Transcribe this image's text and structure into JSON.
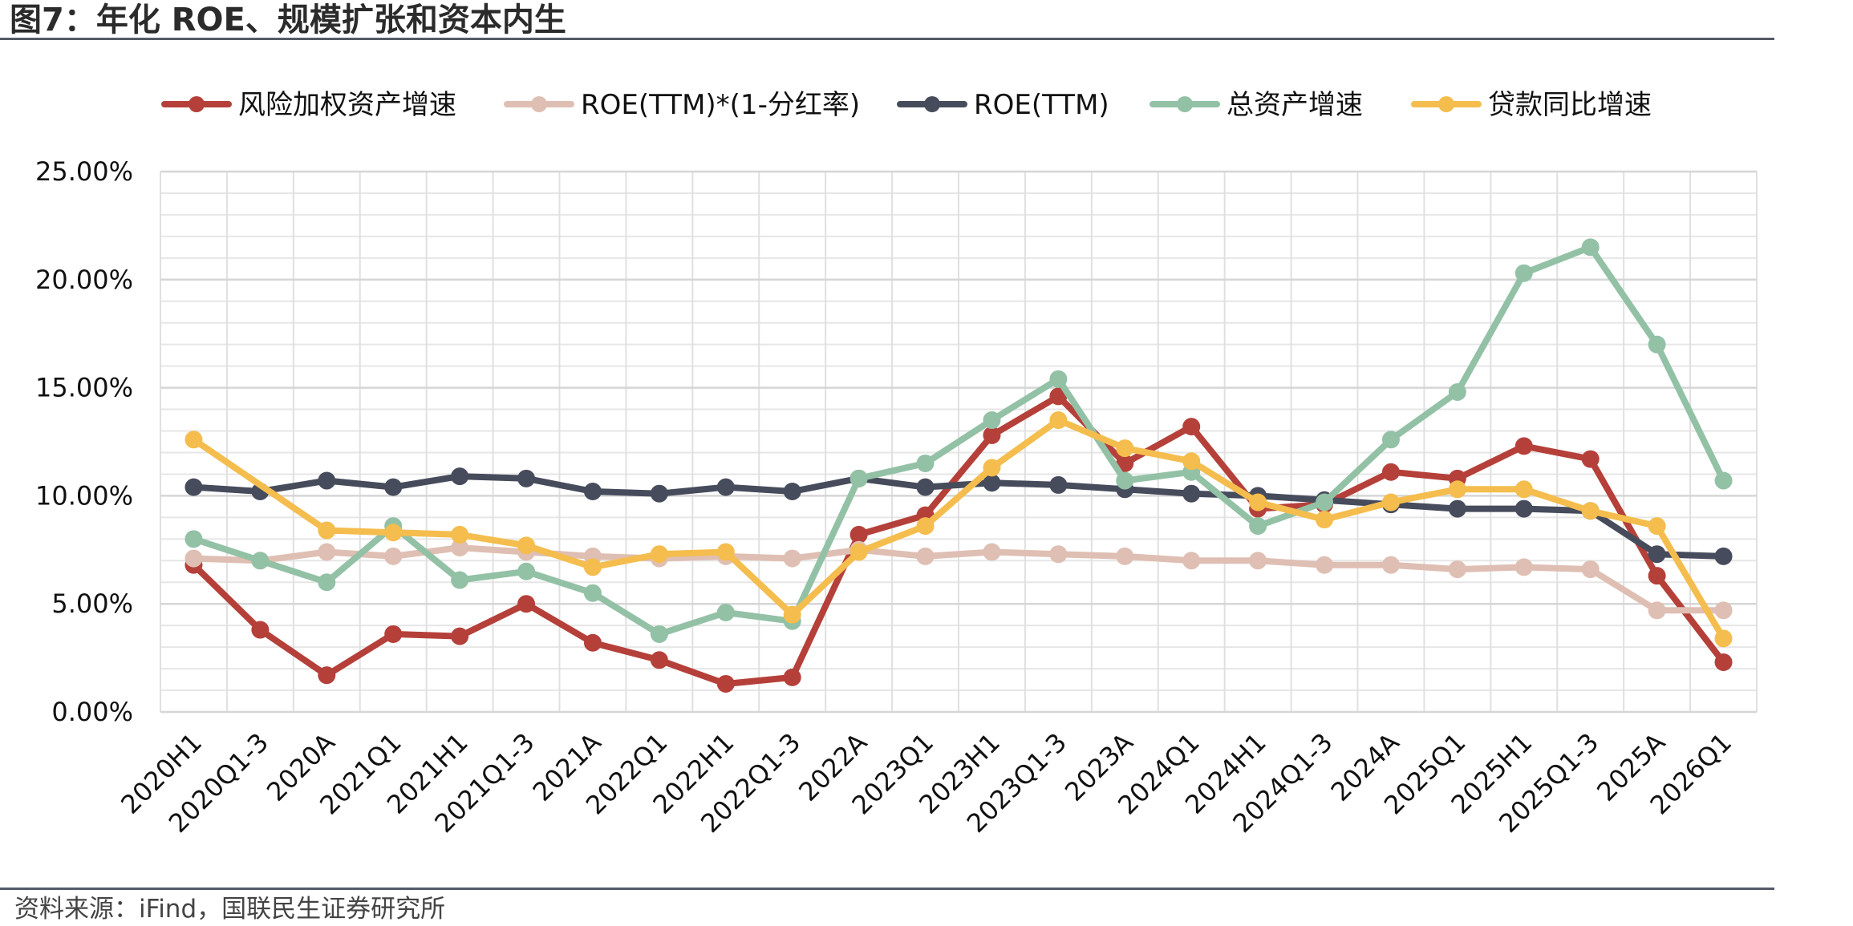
{
  "figure": {
    "title": "图7：年化 ROE、规模扩张和资本内生",
    "source": "资料来源：iFind，国联民生证券研究所"
  },
  "chart_data": {
    "type": "line",
    "categories": [
      "2020H1",
      "2020Q1-3",
      "2020A",
      "2021Q1",
      "2021H1",
      "2021Q1-3",
      "2021A",
      "2022Q1",
      "2022H1",
      "2022Q1-3",
      "2022A",
      "2023Q1",
      "2023H1",
      "2023Q1-3",
      "2023A",
      "2024Q1",
      "2024H1",
      "2024Q1-3",
      "2024A",
      "2025Q1",
      "2025H1",
      "2025Q1-3",
      "2025A",
      "2026Q1"
    ],
    "ylim": [
      0,
      25
    ],
    "yticks": [
      0,
      5,
      10,
      15,
      20,
      25
    ],
    "ytick_labels": [
      "0.00%",
      "5.00%",
      "10.00%",
      "15.00%",
      "20.00%",
      "25.00%"
    ],
    "grid": true,
    "legend_position": "top",
    "series": [
      {
        "name": "风险加权资产增速",
        "color": "#b5403a",
        "values": [
          6.8,
          3.8,
          1.7,
          3.6,
          3.5,
          5.0,
          3.2,
          2.4,
          1.3,
          1.6,
          8.2,
          9.1,
          12.8,
          14.6,
          11.5,
          13.2,
          9.4,
          9.6,
          11.1,
          10.8,
          12.3,
          11.7,
          6.3,
          2.3
        ]
      },
      {
        "name": "ROE(TTM)*(1-分红率)",
        "color": "#dfbfb3",
        "values": [
          7.1,
          7.0,
          7.4,
          7.2,
          7.6,
          7.4,
          7.2,
          7.1,
          7.2,
          7.1,
          7.5,
          7.2,
          7.4,
          7.3,
          7.2,
          7.0,
          7.0,
          6.8,
          6.8,
          6.6,
          6.7,
          6.6,
          4.7,
          4.7
        ]
      },
      {
        "name": "ROE(TTM)",
        "color": "#474c5c",
        "values": [
          10.4,
          10.2,
          10.7,
          10.4,
          10.9,
          10.8,
          10.2,
          10.1,
          10.4,
          10.2,
          10.8,
          10.4,
          10.6,
          10.5,
          10.3,
          10.1,
          10.0,
          9.8,
          9.6,
          9.4,
          9.4,
          9.3,
          7.3,
          7.2
        ]
      },
      {
        "name": "总资产增速",
        "color": "#93c1a6",
        "values": [
          8.0,
          7.0,
          6.0,
          8.6,
          6.1,
          6.5,
          5.5,
          3.6,
          4.6,
          4.2,
          10.8,
          11.5,
          13.5,
          15.4,
          10.7,
          11.1,
          8.6,
          9.7,
          12.6,
          14.8,
          20.3,
          21.5,
          17.0,
          10.7
        ]
      },
      {
        "name": "贷款同比增速",
        "color": "#f4bd4d",
        "values": [
          12.6,
          null,
          8.4,
          8.3,
          8.2,
          7.7,
          6.7,
          7.3,
          7.4,
          4.5,
          7.4,
          8.6,
          11.3,
          13.5,
          12.2,
          11.6,
          9.7,
          8.9,
          9.7,
          10.3,
          10.3,
          9.3,
          8.6,
          3.4
        ]
      }
    ]
  }
}
